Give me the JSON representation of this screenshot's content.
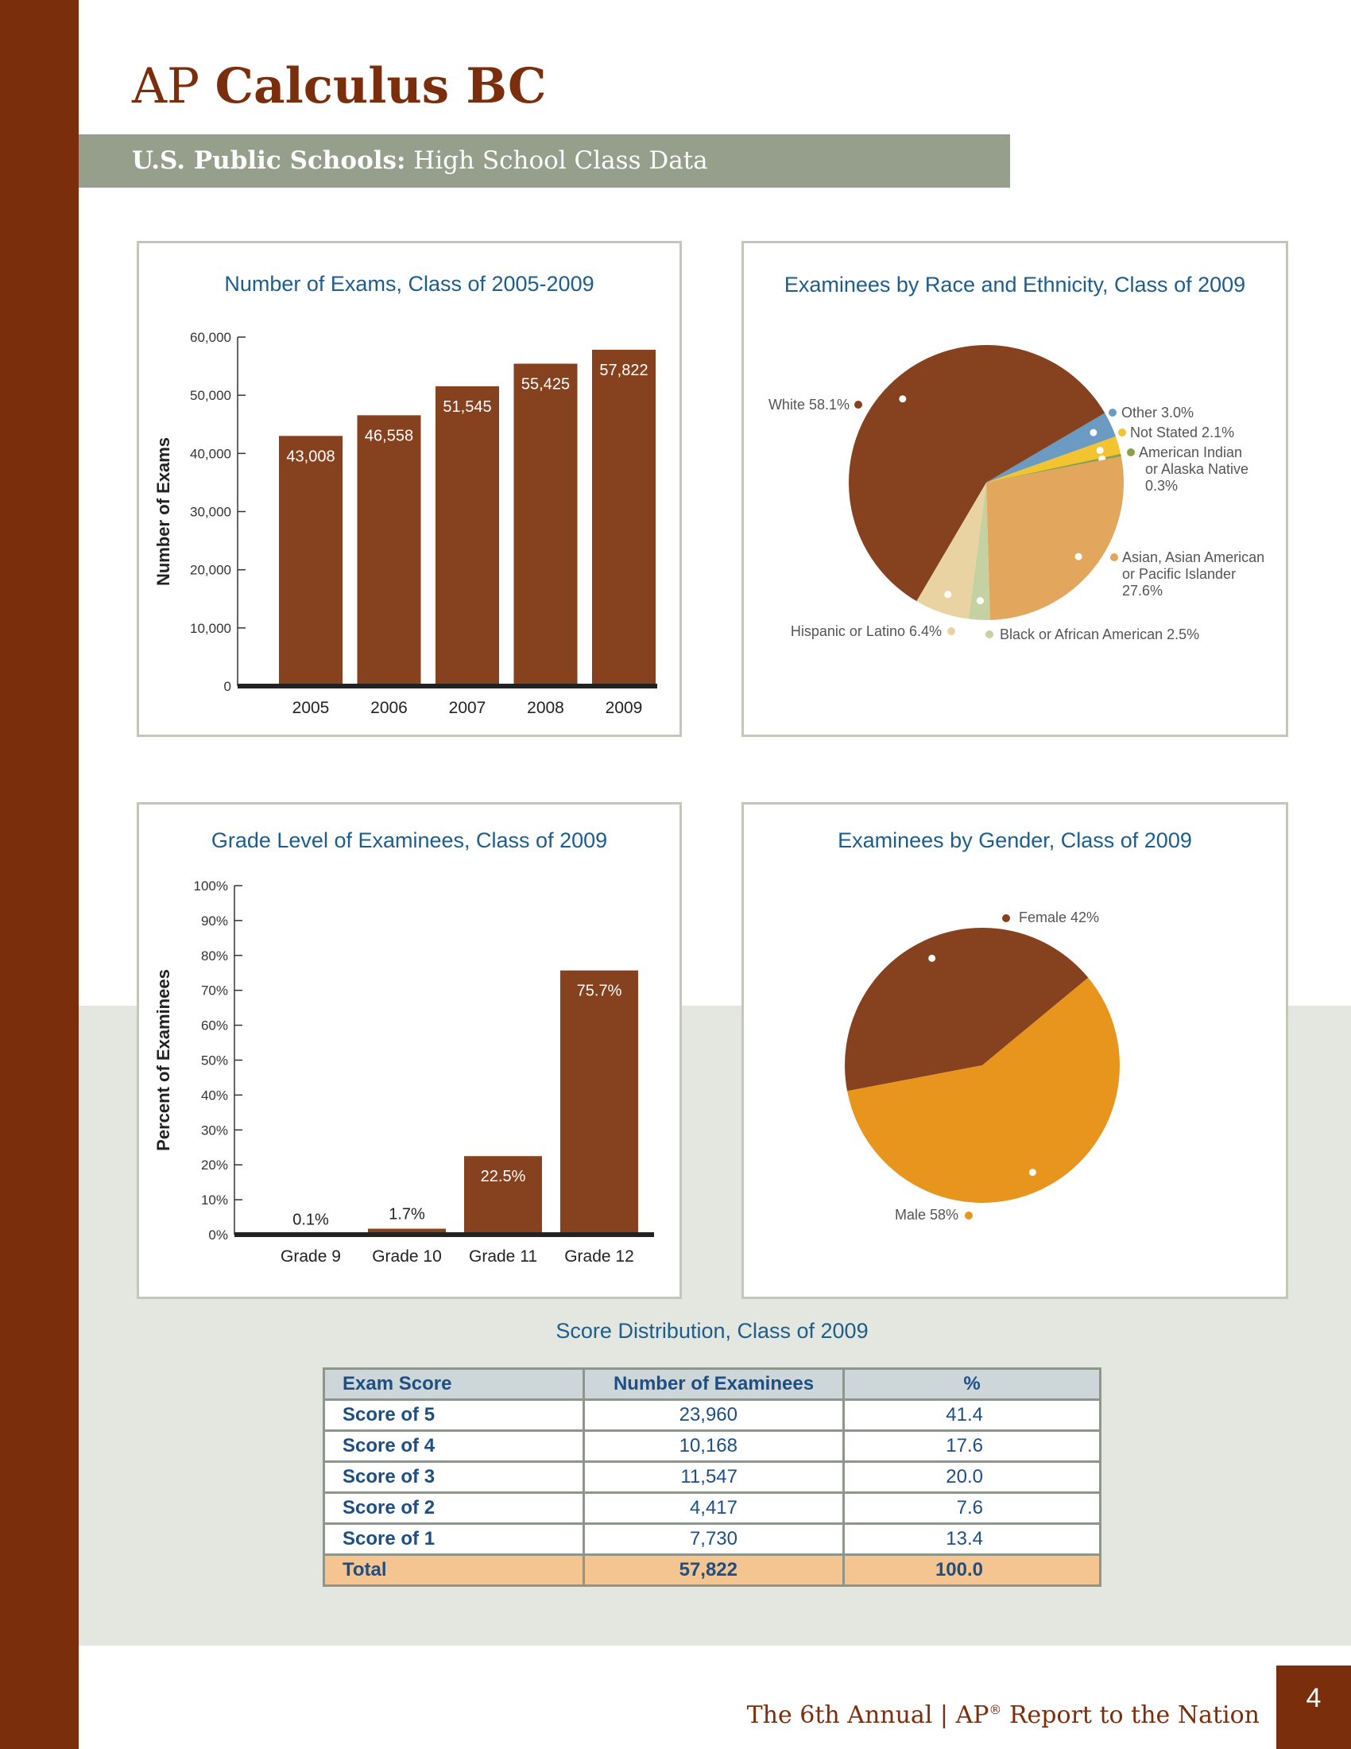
{
  "page": {
    "title_prefix": "AP",
    "title_main": "Calculus BC",
    "subtitle_bold": "U.S. Public Schools:",
    "subtitle_rest": "High School Class Data",
    "footer_part1": "The 6th Annual | AP",
    "footer_reg": "®",
    "footer_part2": " Report to the Nation",
    "page_number": "4"
  },
  "colors": {
    "brown": "#86411f",
    "sidebar": "#7a2e0c",
    "orange": "#e8951e",
    "tan": "#e2a65c",
    "title_blue": "#1d5d8c"
  },
  "chart_data": [
    {
      "type": "bar",
      "title": "Number of Exams, Class of 2005-2009",
      "ylabel": "Number of Exams",
      "categories": [
        "2005",
        "2006",
        "2007",
        "2008",
        "2009"
      ],
      "values": [
        43008,
        46558,
        51545,
        55425,
        57822
      ],
      "value_labels": [
        "43,008",
        "46,558",
        "51,545",
        "55,425",
        "57,822"
      ],
      "ylim": [
        0,
        60000
      ],
      "yticks": [
        0,
        10000,
        20000,
        30000,
        40000,
        50000,
        60000
      ],
      "ytick_labels": [
        "0",
        "10,000",
        "20,000",
        "30,000",
        "40,000",
        "50,000",
        "60,000"
      ]
    },
    {
      "type": "pie",
      "title": "Examinees by Race and Ethnicity, Class of 2009",
      "slices": [
        {
          "label": "Other 3.0%",
          "value": 3.0,
          "color": "#6b9ac2"
        },
        {
          "label": "Not Stated 2.1%",
          "value": 2.1,
          "color": "#f4c330"
        },
        {
          "label": "American Indian or Alaska Native 0.3%",
          "label_lines": [
            "American Indian",
            "or Alaska Native",
            "0.3%"
          ],
          "value": 0.3,
          "color": "#8aa048"
        },
        {
          "label": "Asian, Asian American or Pacific Islander 27.6%",
          "label_lines": [
            "Asian, Asian American",
            "or Pacific Islander",
            "27.6%"
          ],
          "value": 27.6,
          "color": "#e2a65c"
        },
        {
          "label": "Black or African American 2.5%",
          "value": 2.5,
          "color": "#c5d1a0"
        },
        {
          "label": "Hispanic or Latino 6.4%",
          "value": 6.4,
          "color": "#e9d3a3"
        },
        {
          "label": "White 58.1%",
          "value": 58.1,
          "color": "#86411f"
        }
      ]
    },
    {
      "type": "bar",
      "title": "Grade Level of Examinees, Class of 2009",
      "ylabel": "Percent of Examinees",
      "categories": [
        "Grade 9",
        "Grade 10",
        "Grade 11",
        "Grade 12"
      ],
      "values": [
        0.1,
        1.7,
        22.5,
        75.7
      ],
      "value_labels": [
        "0.1%",
        "1.7%",
        "22.5%",
        "75.7%"
      ],
      "ylim": [
        0,
        100
      ],
      "yticks": [
        0,
        10,
        20,
        30,
        40,
        50,
        60,
        70,
        80,
        90,
        100
      ],
      "ytick_labels": [
        "0%",
        "10%",
        "20%",
        "30%",
        "40%",
        "50%",
        "60%",
        "70%",
        "80%",
        "90%",
        "100%"
      ]
    },
    {
      "type": "pie",
      "title": "Examinees by Gender, Class of 2009",
      "slices": [
        {
          "label": "Female 42%",
          "value": 42,
          "color": "#86411f"
        },
        {
          "label": "Male 58%",
          "value": 58,
          "color": "#e8951e"
        }
      ]
    },
    {
      "type": "table",
      "title": "Score Distribution, Class of 2009",
      "columns": [
        "Exam Score",
        "Number of Examinees",
        "%"
      ],
      "rows": [
        [
          "Score of 5",
          "23,960",
          "41.4"
        ],
        [
          "Score of 4",
          "10,168",
          "17.6"
        ],
        [
          "Score of 3",
          "11,547",
          "20.0"
        ],
        [
          "Score of 2",
          "4,417",
          "7.6"
        ],
        [
          "Score of 1",
          "7,730",
          "13.4"
        ]
      ],
      "total": [
        "Total",
        "57,822",
        "100.0"
      ]
    }
  ]
}
